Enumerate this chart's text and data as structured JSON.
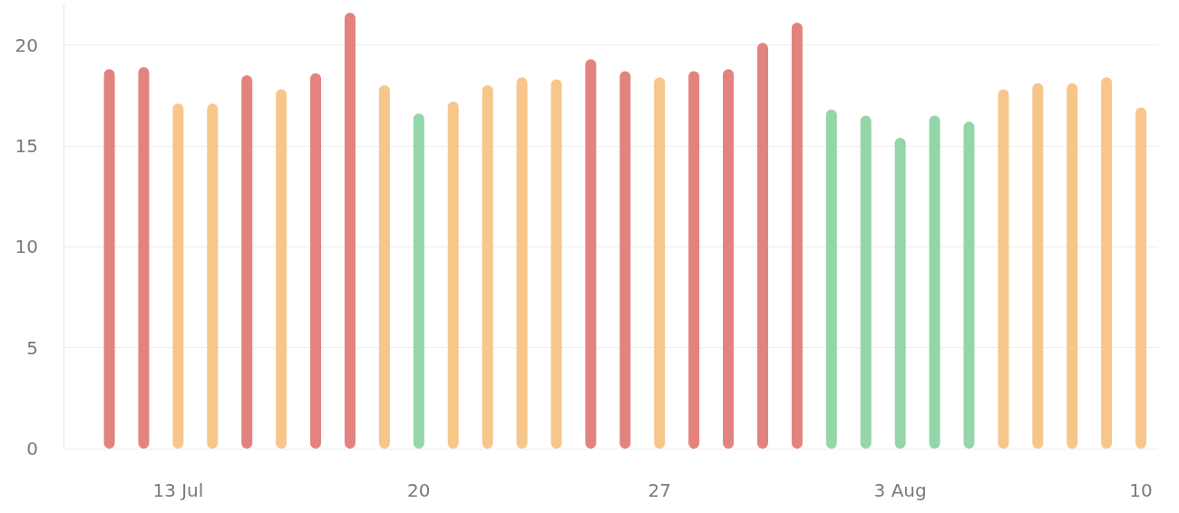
{
  "chart_data": {
    "type": "bar",
    "x": [
      "--07-11",
      "--07-12",
      "--07-13",
      "--07-14",
      "--07-15",
      "--07-16",
      "--07-17",
      "--07-18",
      "--07-19",
      "--07-20",
      "--07-21",
      "--07-22",
      "--07-23",
      "--07-24",
      "--07-25",
      "--07-26",
      "--07-27",
      "--07-28",
      "--07-29",
      "--07-30",
      "--07-31",
      "--08-01",
      "--08-02",
      "--08-03",
      "--08-04",
      "--08-05",
      "--08-06",
      "--08-07",
      "--08-08",
      "--08-09",
      "--08-10"
    ],
    "values": [
      18.8,
      18.9,
      17.1,
      17.1,
      18.5,
      17.8,
      18.6,
      21.6,
      18.0,
      16.6,
      17.2,
      18.0,
      18.4,
      18.3,
      19.3,
      18.7,
      18.4,
      18.7,
      18.8,
      20.1,
      21.1,
      16.8,
      16.5,
      15.4,
      16.5,
      16.2,
      17.8,
      18.1,
      18.1,
      18.4,
      16.9
    ],
    "colors": [
      "#e3837e",
      "#e3837e",
      "#f6c68a",
      "#f6c68a",
      "#e3837e",
      "#f6c68a",
      "#e3837e",
      "#e3837e",
      "#f6c68a",
      "#94d6a8",
      "#f6c68a",
      "#f6c68a",
      "#f6c68a",
      "#f6c68a",
      "#e3837e",
      "#e3837e",
      "#f6c68a",
      "#e3837e",
      "#e3837e",
      "#e3837e",
      "#e3837e",
      "#94d6a8",
      "#94d6a8",
      "#94d6a8",
      "#94d6a8",
      "#94d6a8",
      "#f6c68a",
      "#f6c68a",
      "#f6c68a",
      "#f6c68a",
      "#f6c68a"
    ],
    "xlim": [
      "--07-09T16:00",
      "--08-10T12:00"
    ],
    "xticks": [
      {
        "value": "--07-13",
        "label": "13 Jul"
      },
      {
        "value": "--07-20",
        "label": "20"
      },
      {
        "value": "--07-27",
        "label": "27"
      },
      {
        "value": "--08-03",
        "label": "3 Aug"
      },
      {
        "value": "--08-10",
        "label": "10"
      }
    ],
    "ylim": [
      0,
      22
    ],
    "yticks": [
      0,
      5,
      10,
      15,
      20
    ],
    "grid": "y"
  }
}
